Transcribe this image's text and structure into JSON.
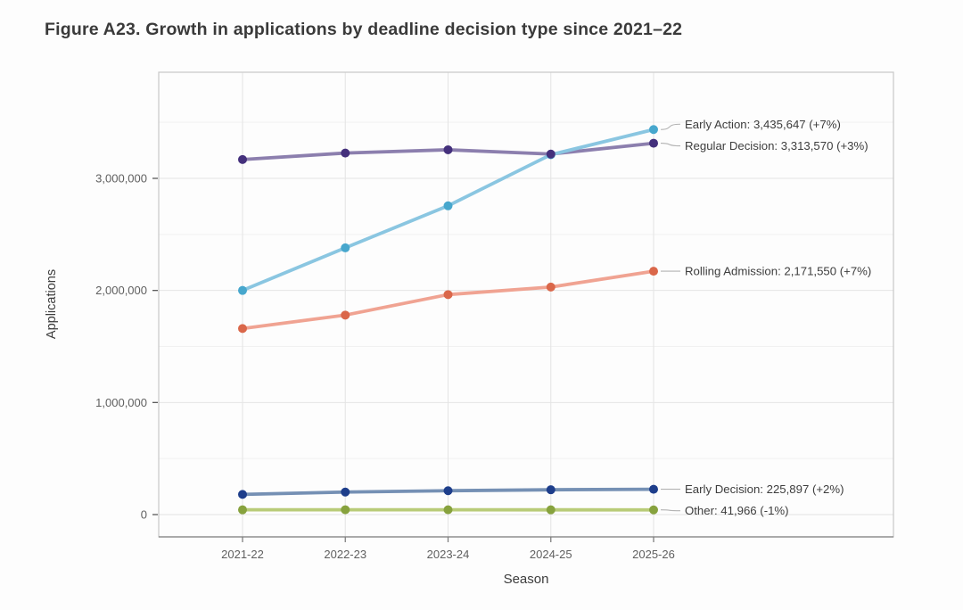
{
  "figure": {
    "title": "Figure A23. Growth in applications by deadline decision type since 2021–22"
  },
  "chart_data": {
    "type": "line",
    "title": "Figure A23. Growth in applications by deadline decision type since 2021–22",
    "xlabel": "Season",
    "ylabel": "Applications",
    "categories": [
      "2021-22",
      "2022-23",
      "2023-24",
      "2024-25",
      "2025-26"
    ],
    "series": [
      {
        "name": "Early Action",
        "values": [
          2000000,
          2380000,
          2755000,
          3211000,
          3435647
        ],
        "line_color": "#8ac6e1",
        "marker_color": "#47a7cd",
        "annotation": "Early Action: 3,435,647 (+7%)",
        "label_dy": -6
      },
      {
        "name": "Regular Decision",
        "values": [
          3168000,
          3226000,
          3255000,
          3217000,
          3313570
        ],
        "line_color": "#8c7fae",
        "marker_color": "#44307c",
        "annotation": "Regular Decision: 3,313,570 (+3%)",
        "label_dy": 3
      },
      {
        "name": "Rolling Admission",
        "values": [
          1660000,
          1780000,
          1963000,
          2030000,
          2171550
        ],
        "line_color": "#f0a392",
        "marker_color": "#da674a",
        "annotation": "Rolling Admission: 2,171,550 (+7%)",
        "label_dy": 0
      },
      {
        "name": "Early Decision",
        "values": [
          180000,
          201000,
          213000,
          221500,
          225897
        ],
        "line_color": "#7590b4",
        "marker_color": "#1e3e8b",
        "annotation": "Early Decision: 225,897 (+2%)",
        "label_dy": 0
      },
      {
        "name": "Other",
        "values": [
          42500,
          43000,
          42800,
          42390,
          41966
        ],
        "line_color": "#b9cc78",
        "marker_color": "#87a23e",
        "annotation": "Other: 41,966 (-1%)",
        "label_dy": 1
      }
    ],
    "yticks_major": [
      0,
      1000000,
      2000000,
      3000000
    ],
    "ytick_labels": [
      "0",
      "1,000,000",
      "2,000,000",
      "3,000,000"
    ],
    "yticks_minor": [
      500000,
      1500000,
      2500000,
      3500000
    ],
    "ylim": [
      -210000,
      3950000
    ],
    "grid": true,
    "legend_position": "right-inside-annotations",
    "colors": {
      "title_text": "#3a3a3a",
      "tick_label": "#5f5f5f",
      "axis_title": "#3c3c3c",
      "panel_border": "#c8c8c8",
      "grid_major": "#e4e4e4",
      "grid_minor": "#f1f1f1",
      "axis_line": "#7f7f7f",
      "annotation_text": "#3d3d3d",
      "leader_line": "#b3b3b3"
    }
  }
}
